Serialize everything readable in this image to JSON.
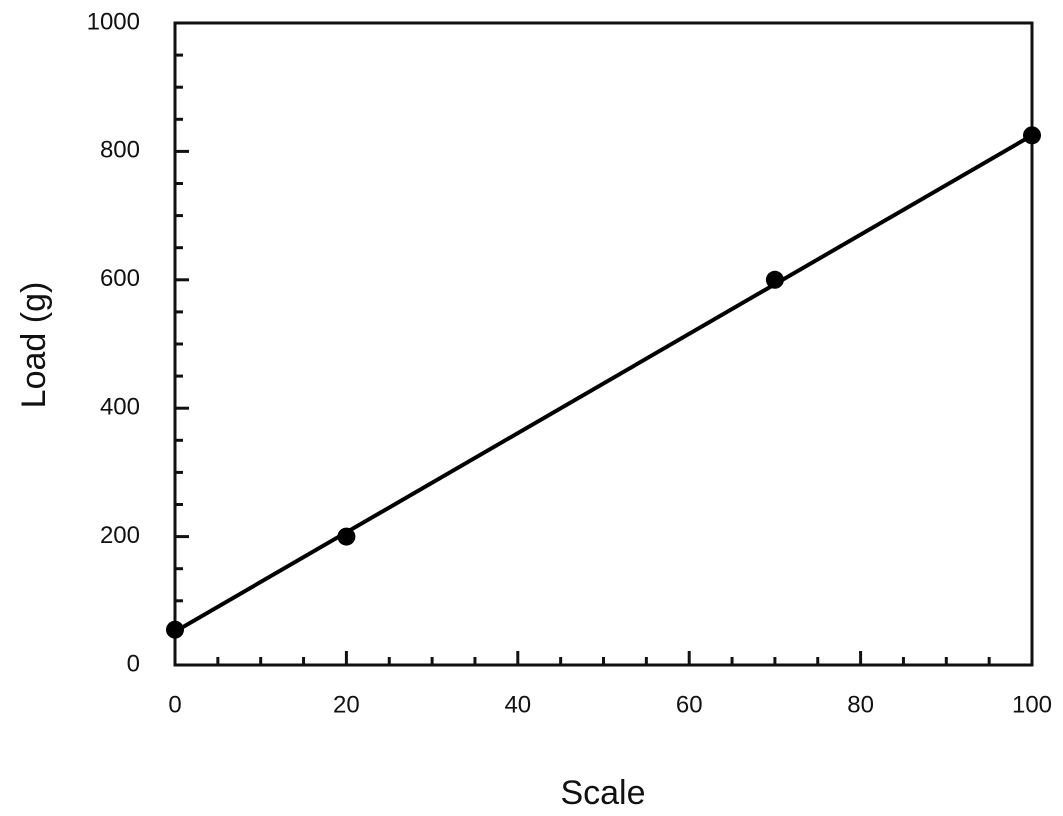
{
  "chart_data": {
    "type": "scatter",
    "x_label": "Scale",
    "y_label": "Load (g)",
    "xlim": [
      0,
      100
    ],
    "xticks": [
      0,
      20,
      40,
      60,
      80,
      100
    ],
    "ylim": [
      0,
      1000
    ],
    "yticks": [
      0,
      200,
      400,
      600,
      800,
      1000
    ],
    "minor_ticks": true,
    "grid": false,
    "series": [
      {
        "color": "#000000",
        "marker": "circle",
        "x": [
          0,
          20,
          70,
          100
        ],
        "values": [
          55,
          200,
          600,
          825
        ]
      },
      {
        "color": "#000000",
        "line": true,
        "x": [
          0,
          100
        ],
        "values": [
          52,
          825
        ]
      }
    ]
  }
}
